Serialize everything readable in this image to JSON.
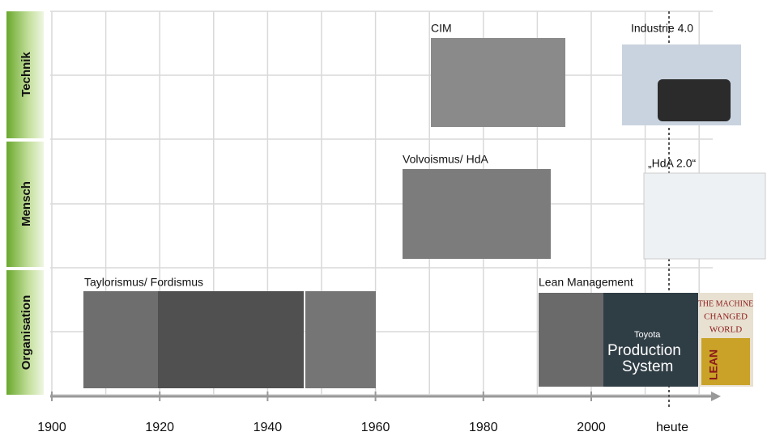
{
  "rows": [
    "Technik",
    "Mensch",
    "Organisation"
  ],
  "eras": [
    {
      "label": "CIM"
    },
    {
      "label": "Industrie 4.0"
    },
    {
      "label": "Volvoismus/ HdA"
    },
    {
      "label": "„HdA 2.0“"
    },
    {
      "label": "Taylorismus/ Fordismus"
    },
    {
      "label": "Lean Management"
    }
  ],
  "image_texts": {
    "toyota": [
      "Toyota",
      "Production",
      "System"
    ],
    "book": [
      "THE MACHINE",
      "CHANGED",
      "WORLD",
      "LEAN"
    ]
  },
  "axis": [
    "1900",
    "1920",
    "1940",
    "1960",
    "1980",
    "2000",
    "heute"
  ]
}
